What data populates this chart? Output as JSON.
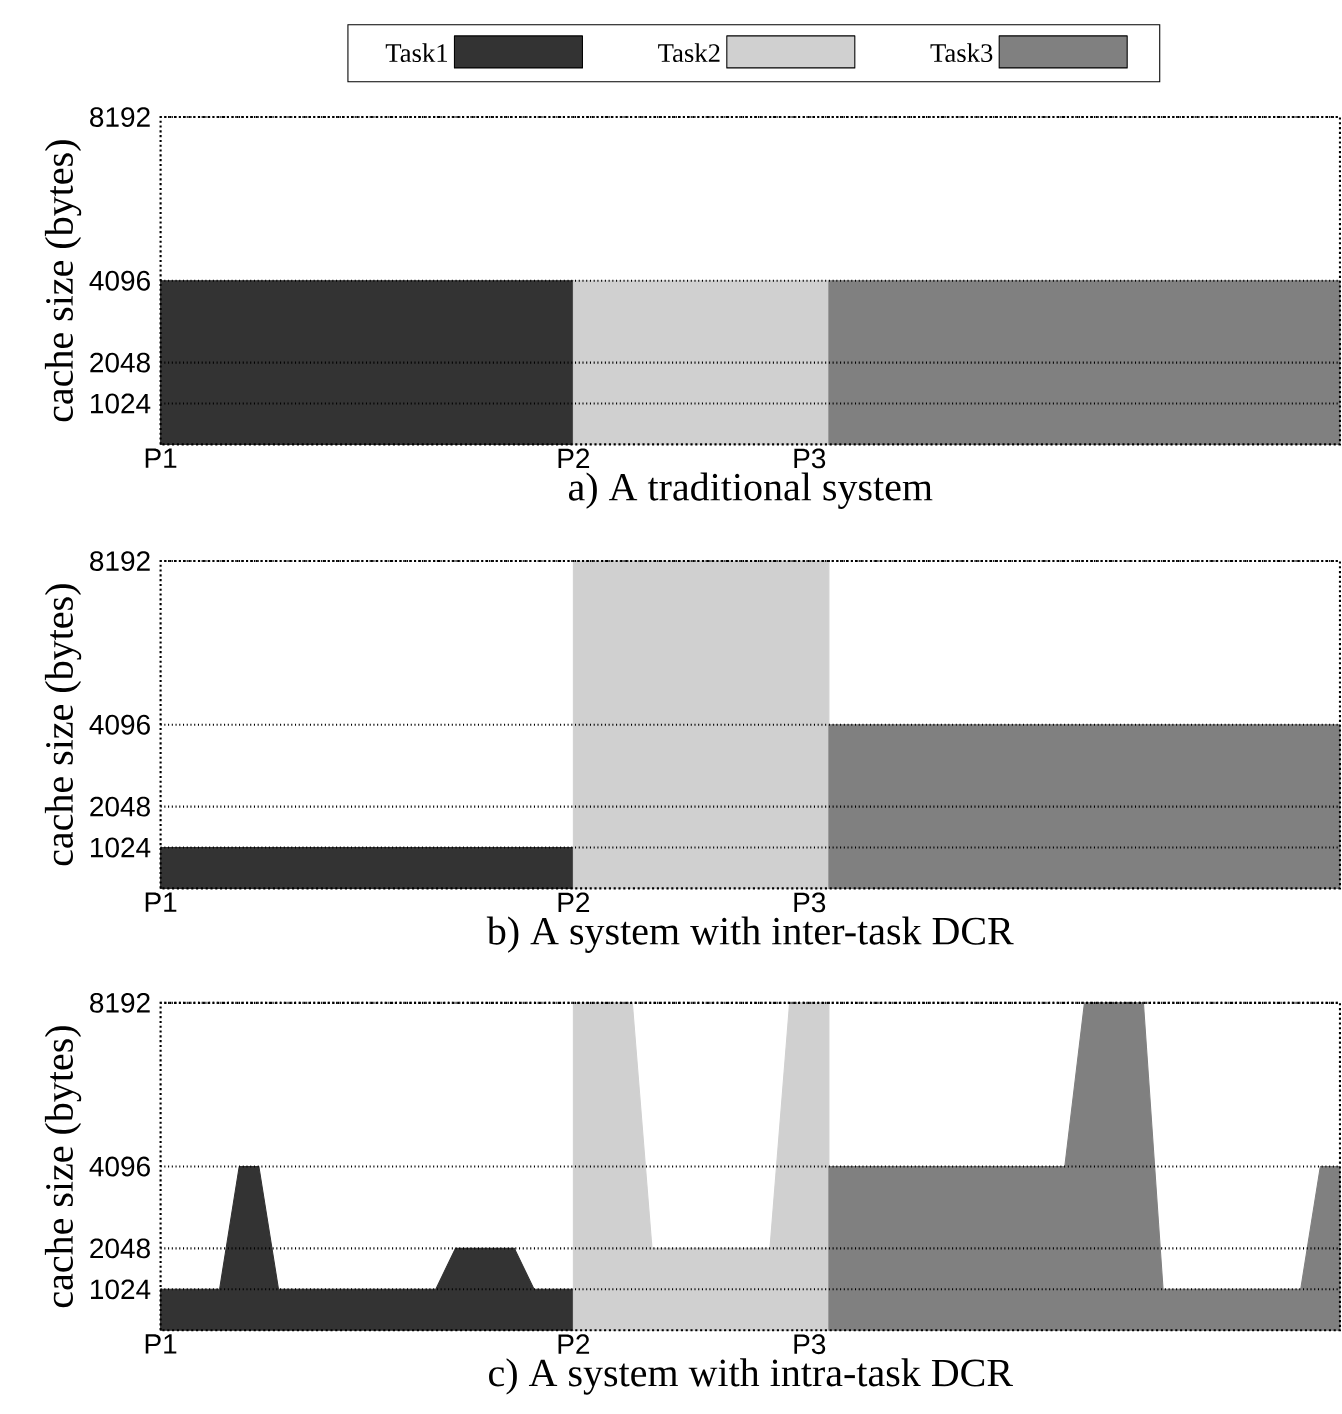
{
  "chart_data": [
    {
      "type": "area",
      "title": "a) A traditional system",
      "ylabel": "cache size (bytes)",
      "categories": [
        "P1",
        null,
        null,
        null,
        null,
        null,
        null,
        null,
        null,
        null,
        null,
        null,
        null,
        null,
        null,
        null,
        null,
        null,
        null,
        null,
        null,
        "P2",
        null,
        null,
        null,
        null,
        null,
        null,
        null,
        null,
        null,
        null,
        null,
        "P3",
        null,
        null,
        null,
        null,
        null,
        null,
        null,
        null,
        null,
        null,
        null,
        null,
        null,
        null,
        null,
        null,
        null,
        null,
        null,
        null,
        null,
        null,
        null,
        null,
        null,
        null,
        null
      ],
      "ylim": [
        0,
        8192
      ],
      "yticks": [
        1024,
        2048,
        4096,
        8192
      ],
      "grid": "y",
      "legend": "top",
      "series": [
        {
          "name": "Task1",
          "color": "#333333",
          "values": [
            4096,
            4096,
            4096,
            4096,
            4096,
            4096,
            4096,
            4096,
            4096,
            4096,
            4096,
            4096,
            4096,
            4096,
            4096,
            4096,
            4096,
            4096,
            4096,
            4096,
            4096,
            4096,
            null,
            null,
            null,
            null,
            null,
            null,
            null,
            null,
            null,
            null,
            null,
            null,
            null,
            null,
            null,
            null,
            null,
            null,
            null,
            null,
            null,
            null,
            null,
            null,
            null,
            null,
            null,
            null,
            null,
            null,
            null,
            null,
            null,
            null,
            null,
            null,
            null,
            null,
            null
          ]
        },
        {
          "name": "Task2",
          "color": "#d0d0d0",
          "values": [
            null,
            null,
            null,
            null,
            null,
            null,
            null,
            null,
            null,
            null,
            null,
            null,
            null,
            null,
            null,
            null,
            null,
            null,
            null,
            null,
            null,
            4096,
            4096,
            4096,
            4096,
            4096,
            4096,
            4096,
            4096,
            4096,
            4096,
            4096,
            4096,
            4096,
            4096,
            null,
            null,
            null,
            null,
            null,
            null,
            null,
            null,
            null,
            null,
            null,
            null,
            null,
            null,
            null,
            null,
            null,
            null,
            null,
            null,
            null,
            null,
            null,
            null,
            null,
            null
          ]
        },
        {
          "name": "Task3",
          "color": "#808080",
          "values": [
            null,
            null,
            null,
            null,
            null,
            null,
            null,
            null,
            null,
            null,
            null,
            null,
            null,
            null,
            null,
            null,
            null,
            null,
            null,
            null,
            null,
            null,
            null,
            null,
            null,
            null,
            null,
            null,
            null,
            null,
            null,
            null,
            null,
            null,
            4096,
            4096,
            4096,
            4096,
            4096,
            4096,
            4096,
            4096,
            4096,
            4096,
            4096,
            4096,
            4096,
            4096,
            4096,
            4096,
            4096,
            4096,
            4096,
            4096,
            4096,
            4096,
            4096,
            4096,
            4096,
            4096,
            4096
          ]
        }
      ]
    },
    {
      "type": "area",
      "title": "b) A system with inter-task DCR",
      "ylabel": "cache size (bytes)",
      "categories": [
        "P1",
        null,
        null,
        null,
        null,
        null,
        null,
        null,
        null,
        null,
        null,
        null,
        null,
        null,
        null,
        null,
        null,
        null,
        null,
        null,
        null,
        "P2",
        null,
        null,
        null,
        null,
        null,
        null,
        null,
        null,
        null,
        null,
        null,
        "P3",
        null,
        null,
        null,
        null,
        null,
        null,
        null,
        null,
        null,
        null,
        null,
        null,
        null,
        null,
        null,
        null,
        null,
        null,
        null,
        null,
        null,
        null,
        null,
        null,
        null,
        null,
        null
      ],
      "ylim": [
        0,
        8192
      ],
      "yticks": [
        1024,
        2048,
        4096,
        8192
      ],
      "grid": "y",
      "series": [
        {
          "color": "#333333",
          "values": [
            1024,
            1024,
            1024,
            1024,
            1024,
            1024,
            1024,
            1024,
            1024,
            1024,
            1024,
            1024,
            1024,
            1024,
            1024,
            1024,
            1024,
            1024,
            1024,
            1024,
            1024,
            1024,
            null,
            null,
            null,
            null,
            null,
            null,
            null,
            null,
            null,
            null,
            null,
            null,
            null,
            null,
            null,
            null,
            null,
            null,
            null,
            null,
            null,
            null,
            null,
            null,
            null,
            null,
            null,
            null,
            null,
            null,
            null,
            null,
            null,
            null,
            null,
            null,
            null,
            null,
            null
          ]
        },
        {
          "color": "#d0d0d0",
          "values": [
            null,
            null,
            null,
            null,
            null,
            null,
            null,
            null,
            null,
            null,
            null,
            null,
            null,
            null,
            null,
            null,
            null,
            null,
            null,
            null,
            null,
            8192,
            8192,
            8192,
            8192,
            8192,
            8192,
            8192,
            8192,
            8192,
            8192,
            8192,
            8192,
            8192,
            8192,
            null,
            null,
            null,
            null,
            null,
            null,
            null,
            null,
            null,
            null,
            null,
            null,
            null,
            null,
            null,
            null,
            null,
            null,
            null,
            null,
            null,
            null,
            null,
            null,
            null,
            null
          ]
        },
        {
          "color": "#808080",
          "values": [
            null,
            null,
            null,
            null,
            null,
            null,
            null,
            null,
            null,
            null,
            null,
            null,
            null,
            null,
            null,
            null,
            null,
            null,
            null,
            null,
            null,
            null,
            null,
            null,
            null,
            null,
            null,
            null,
            null,
            null,
            null,
            null,
            null,
            null,
            4096,
            4096,
            4096,
            4096,
            4096,
            4096,
            4096,
            4096,
            4096,
            4096,
            4096,
            4096,
            4096,
            4096,
            4096,
            4096,
            4096,
            4096,
            4096,
            4096,
            4096,
            4096,
            4096,
            4096,
            4096,
            4096,
            4096
          ]
        }
      ]
    },
    {
      "type": "area",
      "title": "c) A system with intra-task DCR",
      "ylabel": "cache size (bytes)",
      "categories": [
        "P1",
        null,
        null,
        null,
        null,
        null,
        null,
        null,
        null,
        null,
        null,
        null,
        null,
        null,
        null,
        null,
        null,
        null,
        null,
        null,
        null,
        "P2",
        null,
        null,
        null,
        null,
        null,
        null,
        null,
        null,
        null,
        null,
        null,
        "P3",
        null,
        null,
        null,
        null,
        null,
        null,
        null,
        null,
        null,
        null,
        null,
        null,
        null,
        null,
        null,
        null,
        null,
        null,
        null,
        null,
        null,
        null,
        null,
        null,
        null,
        null,
        null
      ],
      "ylim": [
        0,
        8192
      ],
      "yticks": [
        1024,
        2048,
        4096,
        8192
      ],
      "grid": "y",
      "series": [
        {
          "color": "#333333",
          "values": [
            1024,
            1024,
            1024,
            1024,
            4096,
            4096,
            1024,
            1024,
            1024,
            1024,
            1024,
            1024,
            1024,
            1024,
            1024,
            2048,
            2048,
            2048,
            2048,
            1024,
            1024,
            1024,
            null,
            null,
            null,
            null,
            null,
            null,
            null,
            null,
            null,
            null,
            null,
            null,
            null,
            null,
            null,
            null,
            null,
            null,
            null,
            null,
            null,
            null,
            null,
            null,
            null,
            null,
            null,
            null,
            null,
            null,
            null,
            null,
            null,
            null,
            null,
            null,
            null,
            null,
            null
          ]
        },
        {
          "color": "#d0d0d0",
          "values": [
            null,
            null,
            null,
            null,
            null,
            null,
            null,
            null,
            null,
            null,
            null,
            null,
            null,
            null,
            null,
            null,
            null,
            null,
            null,
            null,
            null,
            8192,
            8192,
            8192,
            8192,
            2048,
            2048,
            2048,
            2048,
            2048,
            2048,
            2048,
            8192,
            8192,
            8192,
            null,
            null,
            null,
            null,
            null,
            null,
            null,
            null,
            null,
            null,
            null,
            null,
            null,
            null,
            null,
            null,
            null,
            null,
            null,
            null,
            null,
            null,
            null,
            null,
            null,
            null
          ]
        },
        {
          "color": "#808080",
          "values": [
            null,
            null,
            null,
            null,
            null,
            null,
            null,
            null,
            null,
            null,
            null,
            null,
            null,
            null,
            null,
            null,
            null,
            null,
            null,
            null,
            null,
            null,
            null,
            null,
            null,
            null,
            null,
            null,
            null,
            null,
            null,
            null,
            null,
            null,
            4096,
            4096,
            4096,
            4096,
            4096,
            4096,
            4096,
            4096,
            4096,
            4096,
            4096,
            4096,
            4096,
            8192,
            8192,
            8192,
            8192,
            1024,
            1024,
            1024,
            1024,
            1024,
            1024,
            1024,
            1024,
            4096,
            4096
          ]
        }
      ]
    }
  ]
}
